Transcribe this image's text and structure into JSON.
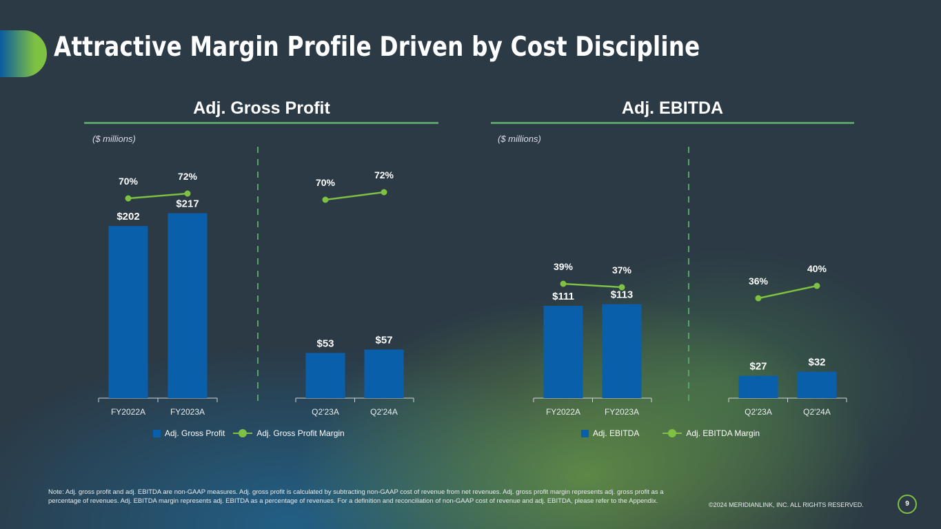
{
  "title": "Attractive Margin Profile Driven by Cost Discipline",
  "colors": {
    "bar": "#0a5fab",
    "line": "#7fc142",
    "rule": "#5aa36a"
  },
  "chart_data": [
    {
      "type": "bar",
      "title": "Adj. Gross Profit",
      "unit": "($ millions)",
      "categories": [
        "FY2022A",
        "FY2023A"
      ],
      "series": [
        {
          "name": "Adj. Gross Profit",
          "values": [
            202,
            217
          ],
          "labels": [
            "$202",
            "$217"
          ]
        },
        {
          "name": "Adj. Gross Profit Margin",
          "type": "line",
          "values": [
            70,
            72
          ],
          "labels": [
            "70%",
            "72%"
          ]
        }
      ]
    },
    {
      "type": "bar",
      "categories": [
        "Q2'23A",
        "Q2'24A"
      ],
      "series": [
        {
          "name": "Adj. Gross Profit",
          "values": [
            53,
            57
          ],
          "labels": [
            "$53",
            "$57"
          ]
        },
        {
          "name": "Adj. Gross Profit Margin",
          "type": "line",
          "values": [
            70,
            72
          ],
          "labels": [
            "70%",
            "72%"
          ]
        }
      ]
    },
    {
      "type": "bar",
      "title": "Adj. EBITDA",
      "unit": "($ millions)",
      "categories": [
        "FY2022A",
        "FY2023A"
      ],
      "series": [
        {
          "name": "Adj. EBITDA",
          "values": [
            111,
            113
          ],
          "labels": [
            "$111",
            "$113"
          ]
        },
        {
          "name": "Adj. EBITDA Margin",
          "type": "line",
          "values": [
            39,
            37
          ],
          "labels": [
            "39%",
            "37%"
          ]
        }
      ]
    },
    {
      "type": "bar",
      "categories": [
        "Q2'23A",
        "Q2'24A"
      ],
      "series": [
        {
          "name": "Adj. EBITDA",
          "values": [
            27,
            32
          ],
          "labels": [
            "$27",
            "$32"
          ]
        },
        {
          "name": "Adj. EBITDA Margin",
          "type": "line",
          "values": [
            36,
            40
          ],
          "labels": [
            "36%",
            "40%"
          ]
        }
      ]
    }
  ],
  "sections": {
    "left": "Adj. Gross Profit",
    "right": "Adj. EBITDA",
    "unit": "($ millions)"
  },
  "legends": {
    "gp_bar": "Adj. Gross Profit",
    "gp_line": "Adj. Gross Profit Margin",
    "eb_bar": "Adj. EBITDA",
    "eb_line": "Adj. EBITDA Margin"
  },
  "footer": {
    "note": "Note: Adj. gross profit and adj. EBITDA are non-GAAP measures. Adj. gross profit is calculated by subtracting non-GAAP cost of revenue from net revenues. Adj. gross profit margin represents adj. gross profit as a percentage of revenues. Adj. EBITDA margin represents adj. EBITDA as a percentage of revenues. For a definition and reconciliation of non-GAAP cost of revenue and adj. EBITDA, please refer to the Appendix.",
    "copyright": "©2024 MERIDIANLINK, INC. ALL RIGHTS RESERVED.",
    "page": "9"
  }
}
